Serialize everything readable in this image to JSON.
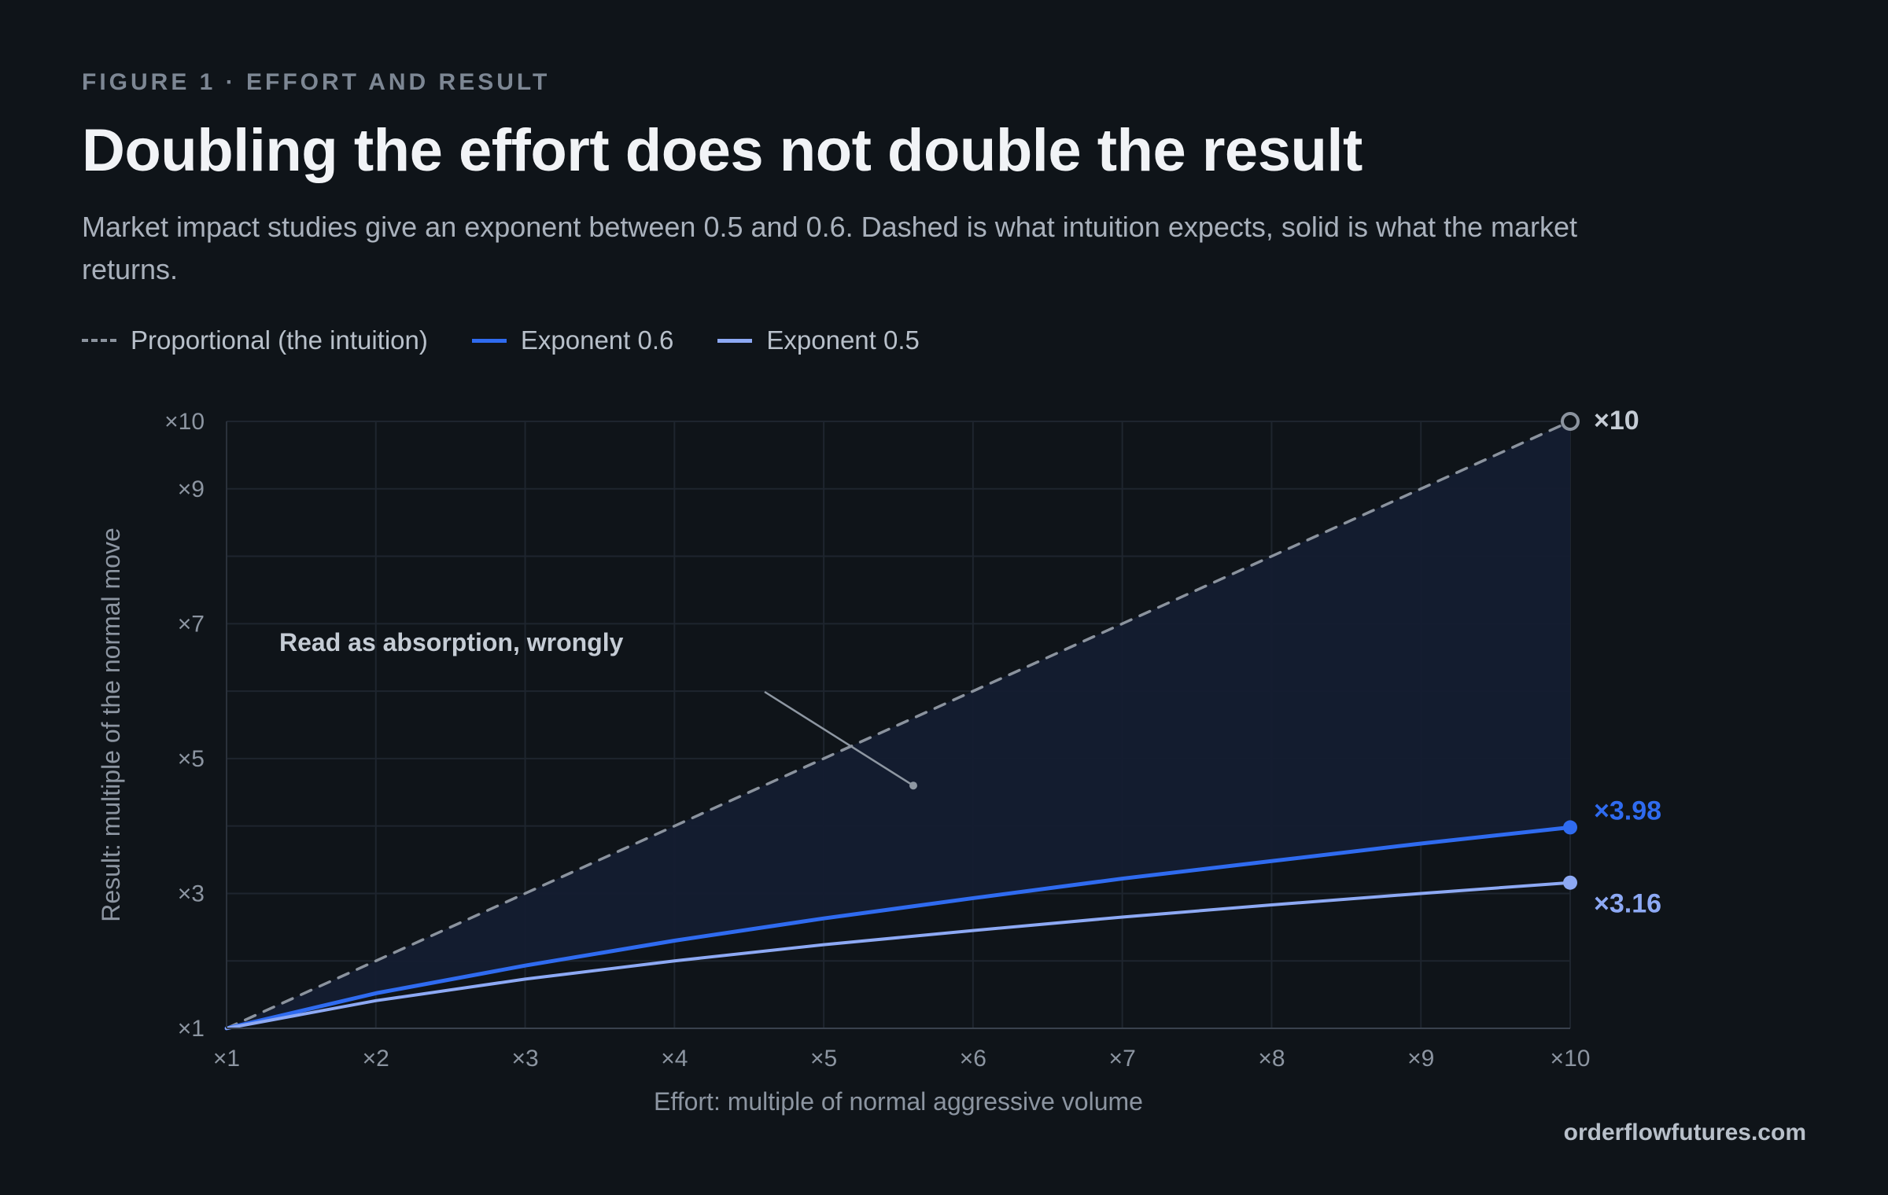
{
  "figure_label": "FIGURE 1 · EFFORT AND RESULT",
  "title": "Doubling the effort does not double the result",
  "subtitle": "Market impact studies give an exponent between 0.5 and 0.6. Dashed is what intuition expects, solid is what the market returns.",
  "brand": "orderflowfutures.com",
  "colors": {
    "background": "#0f1419",
    "proportional": "#8b939e",
    "exponent_06": "#2f6bf0",
    "exponent_05": "#8da9f4",
    "fill": "#141c30"
  },
  "chart_data": {
    "type": "line",
    "xlabel": "Effort: multiple of normal aggressive volume",
    "ylabel": "Result: multiple of the normal move",
    "xlim": [
      1,
      10
    ],
    "ylim": [
      1,
      10
    ],
    "x_ticks": [
      {
        "value": 1,
        "label": "×1"
      },
      {
        "value": 2,
        "label": "×2"
      },
      {
        "value": 3,
        "label": "×3"
      },
      {
        "value": 4,
        "label": "×4"
      },
      {
        "value": 5,
        "label": "×5"
      },
      {
        "value": 6,
        "label": "×6"
      },
      {
        "value": 7,
        "label": "×7"
      },
      {
        "value": 8,
        "label": "×8"
      },
      {
        "value": 9,
        "label": "×9"
      },
      {
        "value": 10,
        "label": "×10"
      }
    ],
    "y_ticks": [
      {
        "value": 1,
        "label": "×1"
      },
      {
        "value": 3,
        "label": "×3"
      },
      {
        "value": 5,
        "label": "×5"
      },
      {
        "value": 7,
        "label": "×7"
      },
      {
        "value": 9,
        "label": "×9"
      },
      {
        "value": 10,
        "label": "×10"
      }
    ],
    "y_grid": [
      1,
      2,
      3,
      4,
      5,
      6,
      7,
      8,
      9,
      10
    ],
    "grid": true,
    "legend_position": "top-left",
    "x": [
      1,
      2,
      3,
      4,
      5,
      6,
      7,
      8,
      9,
      10
    ],
    "series": [
      {
        "name": "Proportional (the intuition)",
        "style": "dashed",
        "values": [
          1,
          2,
          3,
          4,
          5,
          6,
          7,
          8,
          9,
          10
        ],
        "end_label": "×10",
        "marker": "hollow"
      },
      {
        "name": "Exponent 0.6",
        "style": "solid",
        "values": [
          1,
          1.52,
          1.93,
          2.3,
          2.63,
          2.93,
          3.22,
          3.48,
          3.74,
          3.98
        ],
        "end_label": "×3.98",
        "marker": "filled"
      },
      {
        "name": "Exponent 0.5",
        "style": "solid",
        "values": [
          1,
          1.41,
          1.73,
          2.0,
          2.24,
          2.45,
          2.65,
          2.83,
          3.0,
          3.16
        ],
        "end_label": "×3.16",
        "marker": "filled"
      }
    ],
    "annotation": {
      "text": "Read as absorption, wrongly",
      "point": [
        5.6,
        4.6
      ]
    }
  }
}
